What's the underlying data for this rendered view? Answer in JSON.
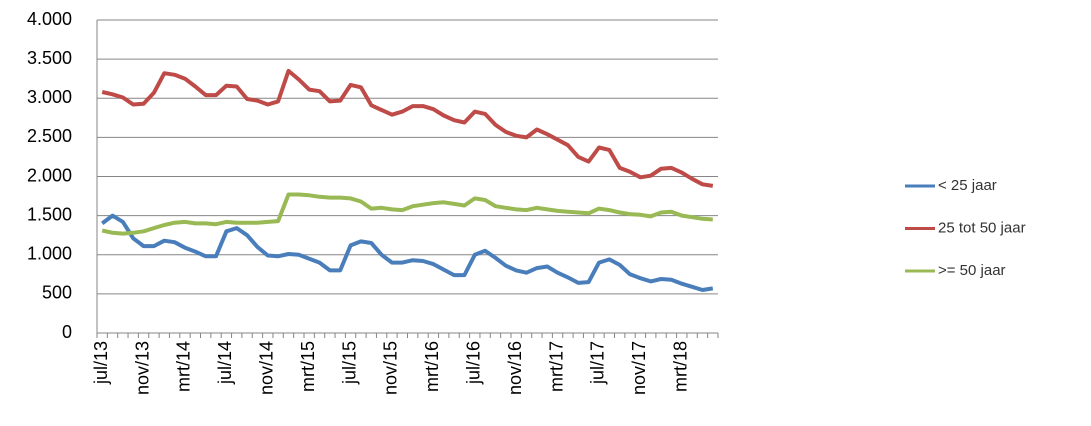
{
  "chart_data": {
    "type": "line",
    "categories": [
      "jul/13",
      null,
      null,
      null,
      "nov/13",
      null,
      null,
      null,
      "mrt/14",
      null,
      null,
      null,
      "jul/14",
      null,
      null,
      null,
      "nov/14",
      null,
      null,
      null,
      "mrt/15",
      null,
      null,
      null,
      "jul/15",
      null,
      null,
      null,
      "nov/15",
      null,
      null,
      null,
      "mrt/16",
      null,
      null,
      null,
      "jul/16",
      null,
      null,
      null,
      "nov/16",
      null,
      null,
      null,
      "mrt/17",
      null,
      null,
      null,
      "jul/17",
      null,
      null,
      null,
      "nov/17",
      null,
      null,
      null,
      "mrt/18",
      null,
      null,
      null
    ],
    "series": [
      {
        "name": "< 25 jaar",
        "color": "#4a7ebb",
        "values": [
          1400,
          1500,
          1420,
          1210,
          1110,
          1110,
          1180,
          1160,
          1090,
          1040,
          980,
          980,
          1300,
          1340,
          1250,
          1100,
          990,
          980,
          1010,
          1000,
          950,
          900,
          800,
          800,
          1120,
          1170,
          1150,
          1000,
          900,
          900,
          930,
          920,
          880,
          810,
          740,
          740,
          1000,
          1050,
          960,
          860,
          800,
          770,
          830,
          850,
          770,
          710,
          640,
          650,
          900,
          940,
          870,
          750,
          700,
          660,
          690,
          680,
          630,
          590,
          550,
          570
        ]
      },
      {
        "name": "25 tot 50 jaar",
        "color": "#be4b48",
        "values": [
          3080,
          3050,
          3010,
          2920,
          2930,
          3070,
          3320,
          3300,
          3250,
          3150,
          3040,
          3040,
          3160,
          3150,
          2990,
          2970,
          2920,
          2960,
          3350,
          3240,
          3110,
          3090,
          2960,
          2970,
          3170,
          3140,
          2910,
          2850,
          2790,
          2830,
          2900,
          2900,
          2860,
          2780,
          2720,
          2690,
          2830,
          2800,
          2660,
          2570,
          2520,
          2500,
          2600,
          2540,
          2470,
          2400,
          2250,
          2190,
          2370,
          2340,
          2110,
          2060,
          1990,
          2010,
          2100,
          2110,
          2050,
          1970,
          1900,
          1880
        ]
      },
      {
        "name": ">= 50 jaar",
        "color": "#98b954",
        "values": [
          1310,
          1280,
          1270,
          1280,
          1300,
          1340,
          1380,
          1410,
          1420,
          1400,
          1400,
          1390,
          1420,
          1410,
          1410,
          1410,
          1420,
          1430,
          1770,
          1770,
          1760,
          1740,
          1730,
          1730,
          1720,
          1680,
          1590,
          1600,
          1580,
          1570,
          1620,
          1640,
          1660,
          1670,
          1650,
          1630,
          1720,
          1700,
          1620,
          1600,
          1580,
          1570,
          1600,
          1580,
          1560,
          1550,
          1540,
          1530,
          1590,
          1570,
          1540,
          1520,
          1510,
          1490,
          1540,
          1550,
          1500,
          1480,
          1460,
          1450
        ]
      }
    ],
    "ylim": [
      0,
      4000
    ],
    "yticks": [
      {
        "value": 0,
        "label": "0"
      },
      {
        "value": 500,
        "label": "500"
      },
      {
        "value": 1000,
        "label": "1.000"
      },
      {
        "value": 1500,
        "label": "1.500"
      },
      {
        "value": 2000,
        "label": "2.000"
      },
      {
        "value": 2500,
        "label": "2.500"
      },
      {
        "value": 3000,
        "label": "3.000"
      },
      {
        "value": 3500,
        "label": "3.500"
      },
      {
        "value": 4000,
        "label": "4.000"
      }
    ],
    "grid": true,
    "legend": "right"
  }
}
